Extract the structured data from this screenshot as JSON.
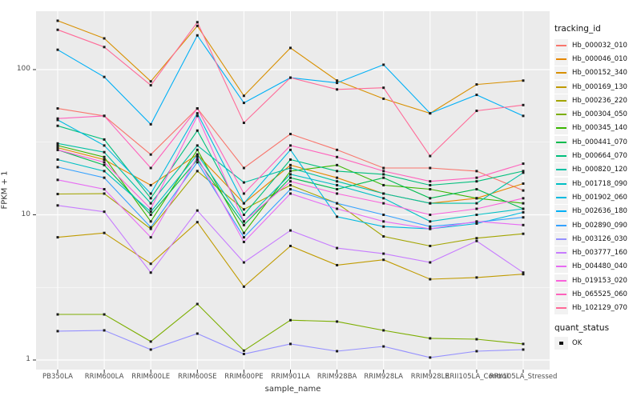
{
  "chart_data": {
    "type": "line",
    "title": "",
    "xlabel": "sample_name",
    "ylabel": "FPKM + 1",
    "y_scale": "log10",
    "y_ticks": [
      1,
      10,
      100
    ],
    "y_minor_ticks": [
      3.162,
      31.62
    ],
    "ylim": [
      0.87,
      260
    ],
    "grid": "on",
    "panel_bg": "#EBEBEB",
    "grid_color": "#FFFFFF",
    "point_color": "#1a1a1a",
    "point_shape": "square",
    "legend_position": "right",
    "legend_title": "tracking_id",
    "categories": [
      "PB350LA",
      "RRIM600LA",
      "RRIM600LE",
      "RRIM600SE",
      "RRIM600PE",
      "RRIM901LA",
      "RRIM928BA",
      "RRIM928LA",
      "RRIM928LE",
      "RRII105LA_Control",
      "RRII105LA_Stressed"
    ],
    "series": [
      {
        "name": "Hb_000032_010",
        "color": "#F8766D",
        "values": [
          54,
          48,
          26,
          54,
          21,
          36,
          28,
          21,
          21,
          20,
          14.7
        ]
      },
      {
        "name": "Hb_000046_010",
        "color": "#E58700",
        "values": [
          29,
          24,
          16,
          26,
          12,
          22,
          18,
          14,
          12,
          13,
          16.4
        ]
      },
      {
        "name": "Hb_000152_340",
        "color": "#D89000",
        "values": [
          217,
          164,
          83,
          200,
          66,
          141,
          84,
          63,
          50,
          79,
          84
        ]
      },
      {
        "name": "Hb_000169_130",
        "color": "#C09B00",
        "values": [
          7.0,
          7.5,
          4.6,
          8.9,
          3.2,
          6.1,
          4.5,
          4.9,
          3.6,
          3.7,
          3.9
        ]
      },
      {
        "name": "Hb_000236_220",
        "color": "#A3A500",
        "values": [
          13.9,
          14,
          8,
          20,
          10.9,
          16,
          12,
          7.1,
          6.1,
          6.9,
          7.4
        ]
      },
      {
        "name": "Hb_000304_050",
        "color": "#7CAE00",
        "values": [
          2.06,
          2.06,
          1.34,
          2.43,
          1.16,
          1.88,
          1.84,
          1.6,
          1.41,
          1.39,
          1.29
        ]
      },
      {
        "name": "Hb_000345_140",
        "color": "#39B600",
        "values": [
          30,
          25,
          9,
          28,
          7.5,
          20,
          22,
          16,
          15,
          13,
          12
        ]
      },
      {
        "name": "Hb_000441_070",
        "color": "#00BB4E",
        "values": [
          28,
          22,
          10,
          24,
          8.5,
          18,
          15,
          18,
          13,
          15,
          11
        ]
      },
      {
        "name": "Hb_000664_070",
        "color": "#00BF7D",
        "values": [
          41,
          33,
          13,
          38,
          10,
          24,
          20,
          19,
          16,
          17,
          20
        ]
      },
      {
        "name": "Hb_000820_120",
        "color": "#00C1A3",
        "values": [
          31,
          27,
          12,
          30,
          16.7,
          21,
          17,
          14,
          12,
          12,
          19.5
        ]
      },
      {
        "name": "Hb_001718_090",
        "color": "#00BFC4",
        "values": [
          24,
          20,
          10.5,
          26,
          9,
          19,
          16,
          13,
          9,
          10,
          11
        ]
      },
      {
        "name": "Hb_001902_060",
        "color": "#00BAE0",
        "values": [
          45,
          30,
          14,
          50,
          12,
          28,
          9.7,
          8.3,
          8,
          8.7,
          10.4
        ]
      },
      {
        "name": "Hb_002636_180",
        "color": "#00B0F6",
        "values": [
          137,
          89,
          42,
          172,
          59,
          88,
          81,
          108,
          50,
          67,
          48
        ]
      },
      {
        "name": "Hb_002890_090",
        "color": "#35A2FF",
        "values": [
          21.3,
          18,
          8.2,
          23,
          7,
          15,
          12,
          10,
          8.3,
          8.9,
          9.6
        ]
      },
      {
        "name": "Hb_003126_030",
        "color": "#9590FF",
        "values": [
          1.58,
          1.6,
          1.18,
          1.52,
          1.1,
          1.29,
          1.15,
          1.24,
          1.04,
          1.15,
          1.18
        ]
      },
      {
        "name": "Hb_003777_160",
        "color": "#C77CFF",
        "values": [
          11.6,
          10.5,
          4.0,
          10.7,
          4.7,
          7.8,
          5.9,
          5.4,
          4.7,
          6.6,
          4.0
        ]
      },
      {
        "name": "Hb_004480_040",
        "color": "#E76BF3",
        "values": [
          17.4,
          15,
          7,
          25,
          6.5,
          14,
          11,
          9,
          8,
          9,
          8.5
        ]
      },
      {
        "name": "Hb_019153_020",
        "color": "#FA62DB",
        "values": [
          28,
          23,
          11,
          48,
          9,
          17,
          14,
          12,
          10,
          11,
          13
        ]
      },
      {
        "name": "Hb_065525_060",
        "color": "#FF62BC",
        "values": [
          46,
          48,
          21,
          54,
          14,
          30,
          25,
          20,
          17,
          18,
          22.5
        ]
      },
      {
        "name": "Hb_102129_070",
        "color": "#FF6A98",
        "values": [
          188,
          143,
          78,
          212,
          43,
          88,
          73,
          75,
          25.4,
          52,
          57
        ]
      }
    ],
    "legend2": {
      "title": "quant_status",
      "items": [
        {
          "label": "OK",
          "symbol": "black-square"
        }
      ]
    }
  }
}
